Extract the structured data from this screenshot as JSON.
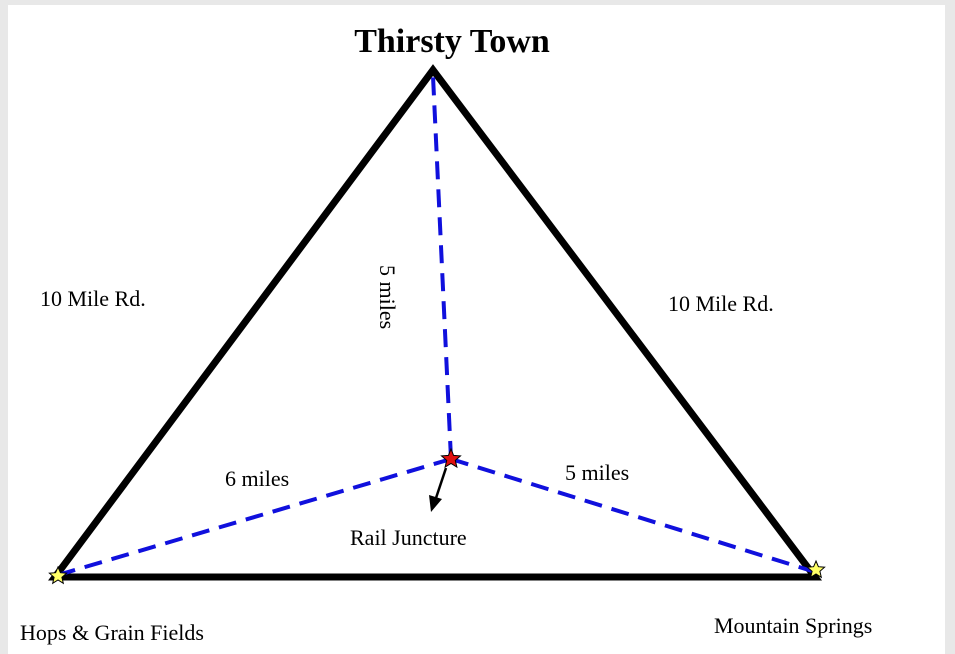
{
  "title": "Thirsty Town",
  "roads": [
    {
      "label": "10 Mile Rd."
    },
    {
      "label": "10 Mile Rd."
    }
  ],
  "distances": [
    {
      "label": "5 miles"
    },
    {
      "label": "6 miles"
    },
    {
      "label": "5 miles"
    }
  ],
  "nodes": [
    {
      "label": "Hops & Grain Fields"
    },
    {
      "label": "Mountain Springs"
    },
    {
      "label": "Rail Juncture"
    }
  ]
}
